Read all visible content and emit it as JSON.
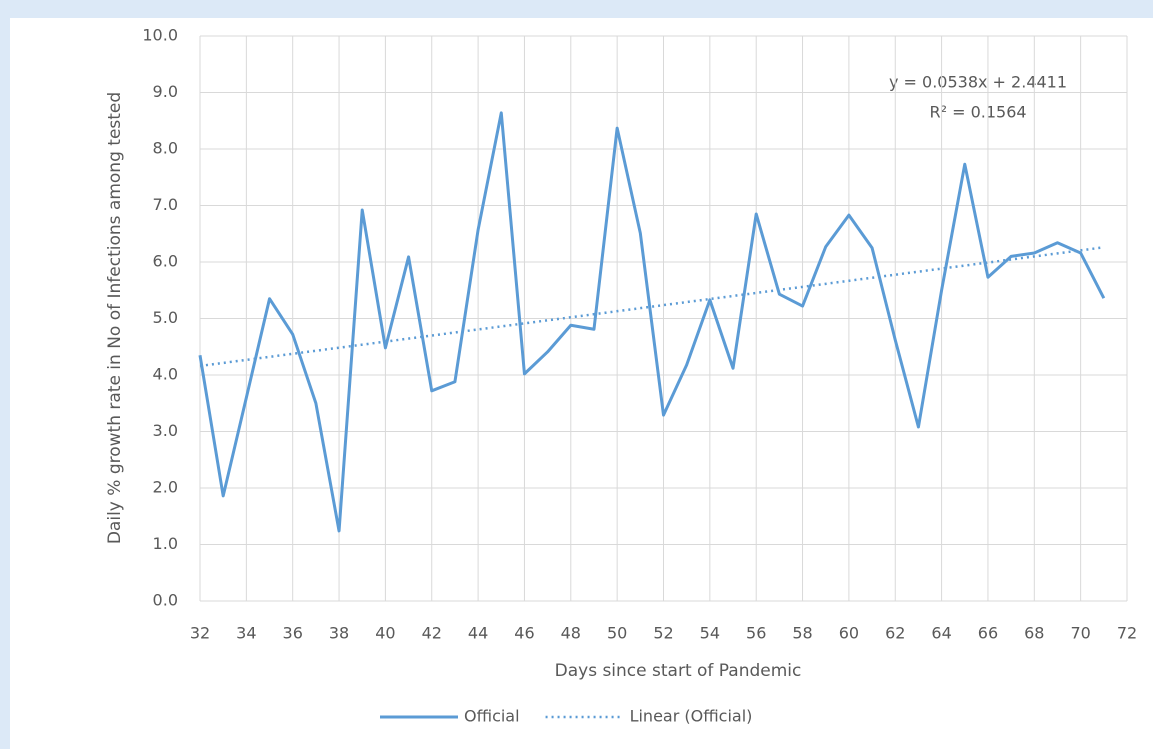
{
  "chart_data": {
    "type": "line",
    "xlabel": "Days since start of Pandemic",
    "ylabel": "Daily % growth rate in No of Infections among tested",
    "annotations": [
      "y = 0.0538x + 2.4411",
      "R² = 0.1564"
    ],
    "series": [
      {
        "name": "Official",
        "color": "#5b9bd5",
        "style": "solid",
        "x": [
          32,
          33,
          34,
          35,
          36,
          37,
          38,
          39,
          40,
          41,
          42,
          43,
          44,
          45,
          46,
          47,
          48,
          49,
          50,
          51,
          52,
          53,
          54,
          55,
          56,
          57,
          58,
          59,
          60,
          61,
          62,
          63,
          64,
          65,
          66,
          67,
          68,
          69,
          70,
          71
        ],
        "values": [
          4.35,
          1.86,
          3.6,
          5.35,
          4.72,
          3.5,
          1.24,
          6.92,
          4.48,
          6.09,
          3.72,
          3.88,
          6.57,
          8.64,
          4.02,
          4.41,
          4.88,
          4.81,
          8.37,
          6.51,
          3.29,
          4.18,
          5.33,
          4.12,
          6.85,
          5.43,
          5.22,
          6.27,
          6.83,
          6.25,
          4.62,
          3.08,
          5.5,
          7.73,
          5.73,
          6.1,
          6.16,
          6.34,
          6.16,
          5.36
        ]
      },
      {
        "name": "Linear (Official)",
        "color": "#5b9bd5",
        "style": "dotted",
        "x": [
          32,
          71
        ],
        "values": [
          4.16,
          6.26
        ]
      }
    ],
    "xlim": [
      32,
      72
    ],
    "xticks": [
      32,
      34,
      36,
      38,
      40,
      42,
      44,
      46,
      48,
      50,
      52,
      54,
      56,
      58,
      60,
      62,
      64,
      66,
      68,
      70,
      72
    ],
    "ylim": [
      0,
      10
    ],
    "yticks": [
      {
        "value": 0,
        "label": "0.0"
      },
      {
        "value": 1,
        "label": "1.0"
      },
      {
        "value": 2,
        "label": "2.0"
      },
      {
        "value": 3,
        "label": "3.0"
      },
      {
        "value": 4,
        "label": "4.0"
      },
      {
        "value": 5,
        "label": "5.0"
      },
      {
        "value": 6,
        "label": "6.0"
      },
      {
        "value": 7,
        "label": "7.0"
      },
      {
        "value": 8,
        "label": "8.0"
      },
      {
        "value": 9,
        "label": "9.0"
      },
      {
        "value": 10,
        "label": "10.0"
      }
    ],
    "grid": true
  }
}
